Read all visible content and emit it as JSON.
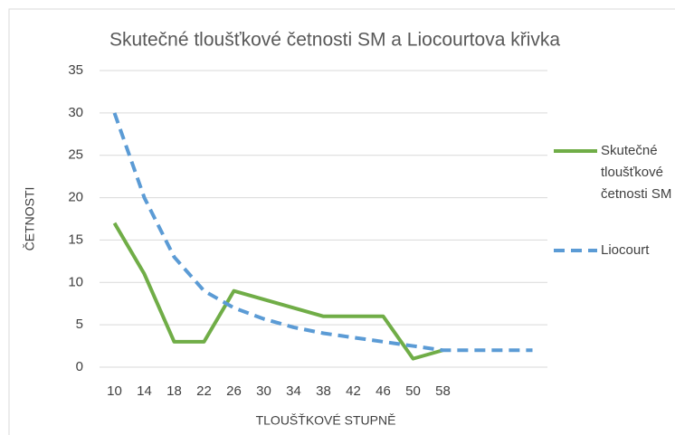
{
  "chart_data": {
    "type": "line",
    "title": "Skutečné tloušťkové četnosti SM a Liocourtova křivka",
    "x_label": "TLOUŠŤKOVÉ STUPNĚ",
    "y_label": "ČETNOSTI",
    "categories": [
      "10",
      "14",
      "18",
      "22",
      "26",
      "30",
      "34",
      "38",
      "42",
      "46",
      "50",
      "58",
      null,
      null,
      null
    ],
    "series": [
      {
        "name": "Skutečné tloušťkové četnosti SM",
        "color": "#70ad47",
        "dash": false,
        "values": [
          17,
          11,
          3,
          3,
          9,
          8,
          7,
          6,
          6,
          6,
          1,
          2,
          null,
          null,
          null
        ]
      },
      {
        "name": "Liocourt",
        "color": "#5b9bd5",
        "dash": true,
        "values": [
          30,
          20,
          13,
          9,
          7,
          5.7,
          4.7,
          4,
          3.5,
          3,
          2.5,
          2,
          2,
          2,
          2
        ]
      }
    ],
    "ylim": [
      0,
      35
    ],
    "yticks": [
      0,
      5,
      10,
      15,
      20,
      25,
      30,
      35
    ],
    "grid": true,
    "legend": "right"
  }
}
